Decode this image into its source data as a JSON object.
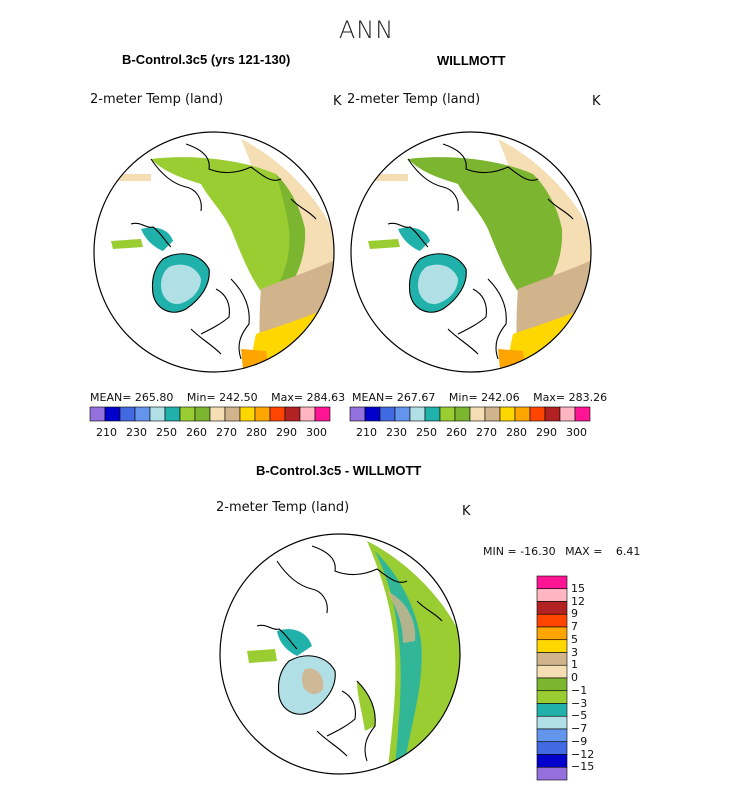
{
  "title": "ANN",
  "colors": {
    "abs_scale": [
      "#9370db",
      "#0000cd",
      "#4169e1",
      "#6495ed",
      "#b0e0e6",
      "#20b2aa",
      "#9acd32",
      "#7cb530",
      "#f5deb3",
      "#d2b48c",
      "#ffd700",
      "#ffa500",
      "#ff4500",
      "#b22222",
      "#ffb6c1",
      "#ff1493"
    ],
    "diff_scale": [
      "#ff1493",
      "#ffb6c1",
      "#b22222",
      "#ff4500",
      "#ffa500",
      "#ffd700",
      "#d2b48c",
      "#f5deb3",
      "#7cb530",
      "#9acd32",
      "#20b2aa",
      "#b0e0e6",
      "#6495ed",
      "#4169e1",
      "#0000cd",
      "#9370db"
    ]
  },
  "chart_data": [
    {
      "type": "heatmap",
      "title": "B-Control.3c5 (yrs 121-130)",
      "variable": "2-meter Temp (land)",
      "units": "K",
      "stats": {
        "mean_label": "MEAN=",
        "mean": "265.80",
        "min_label": "Min=",
        "min": "242.50",
        "max_label": "Max=",
        "max": "284.63"
      },
      "colorbar_ticks": [
        "210",
        "230",
        "250",
        "260",
        "270",
        "280",
        "290",
        "300"
      ]
    },
    {
      "type": "heatmap",
      "title": "WILLMOTT",
      "variable": "2-meter Temp (land)",
      "units": "K",
      "stats": {
        "mean_label": "MEAN=",
        "mean": "267.67",
        "min_label": "Min=",
        "min": "242.06",
        "max_label": "Max=",
        "max": "283.26"
      },
      "colorbar_ticks": [
        "210",
        "230",
        "250",
        "260",
        "270",
        "280",
        "290",
        "300"
      ]
    },
    {
      "type": "heatmap",
      "title": "B-Control.3c5 - WILLMOTT",
      "variable": "2-meter Temp (land)",
      "units": "K",
      "minmax": {
        "min_label": "MIN =",
        "min": "-16.30",
        "max_label": "MAX =",
        "max": "6.41"
      },
      "colorbar_ticks": [
        "15",
        "12",
        "9",
        "7",
        "5",
        "3",
        "1",
        "0",
        "−1",
        "−3",
        "−5",
        "−7",
        "−9",
        "−12",
        "−15"
      ]
    }
  ]
}
